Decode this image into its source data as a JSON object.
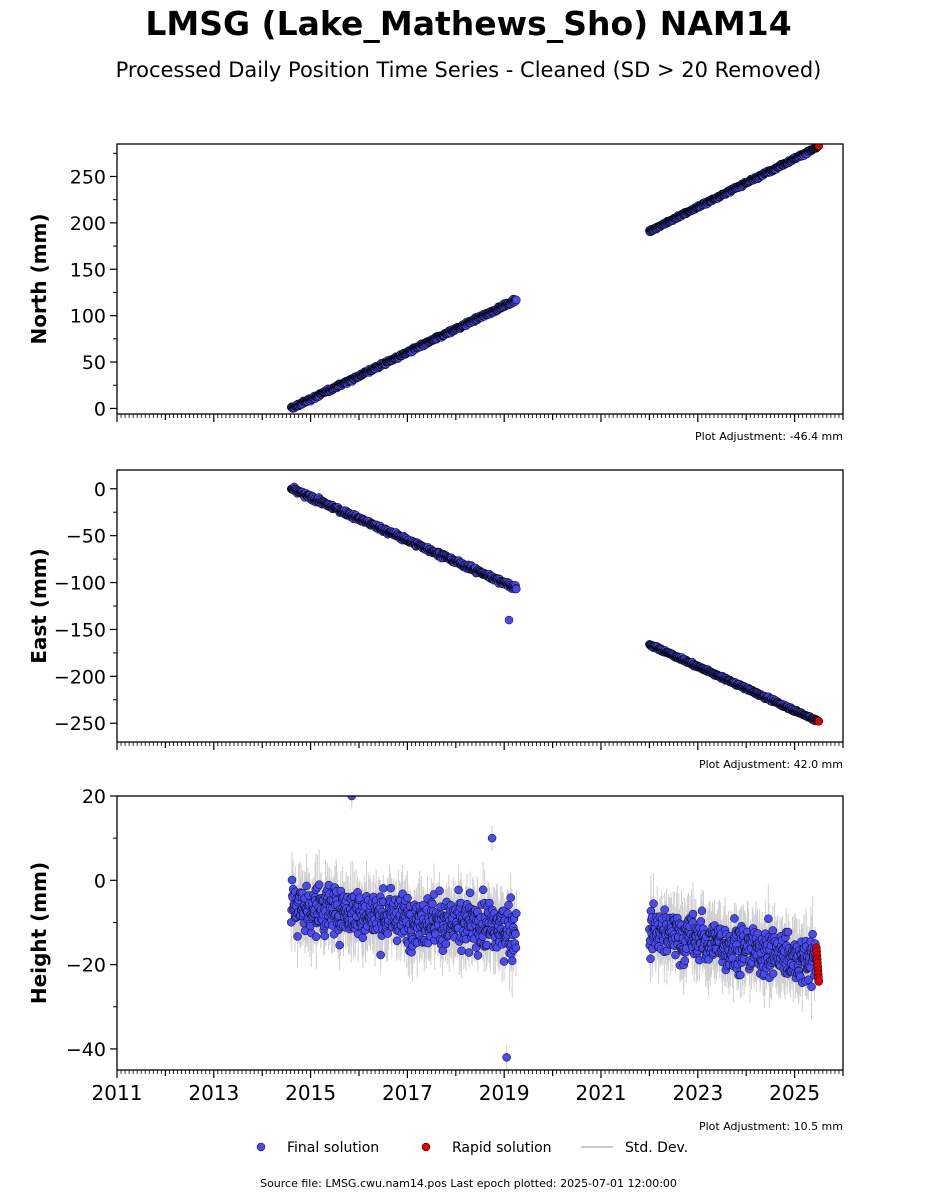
{
  "title": "LMSG (Lake_Mathews_Sho) NAM14",
  "subtitle": "Processed Daily Position Time Series - Cleaned (SD > 20 Removed)",
  "footer": "Source file: LMSG.cwu.nam14.pos  Last epoch plotted: 2025-07-01 12:00:00",
  "colors": {
    "final": "#4a4af0",
    "rapid": "#e00000",
    "stddev": "#bbbbbb",
    "edge": "#000000"
  },
  "legend": {
    "final": "Final solution",
    "rapid": "Rapid solution",
    "stddev": "Std. Dev."
  },
  "x_axis": {
    "range": [
      2011,
      2026
    ],
    "ticks": [
      "2011",
      "2013",
      "2015",
      "2017",
      "2019",
      "2021",
      "2023",
      "2025"
    ]
  },
  "chart_data": [
    {
      "type": "scatter",
      "ylabel": "North (mm)",
      "ylim": [
        -6,
        285
      ],
      "yticks": [
        0,
        50,
        100,
        150,
        200,
        250
      ],
      "adjustment": "Plot Adjustment: -46.4 mm",
      "segments": [
        {
          "x": [
            2014.6,
            2019.25
          ],
          "y": [
            0,
            117
          ],
          "noise": 1.5,
          "err": 2.5
        },
        {
          "x": [
            2022.0,
            2025.45
          ],
          "y": [
            191,
            281
          ],
          "noise": 1.2,
          "err": 1.5
        }
      ],
      "rapid": {
        "x": [
          2025.45,
          2025.5
        ],
        "y": [
          281,
          283
        ]
      },
      "extra_points": []
    },
    {
      "type": "scatter",
      "ylabel": "East (mm)",
      "ylim": [
        -270,
        20
      ],
      "yticks": [
        0,
        -50,
        -100,
        -150,
        -200,
        -250
      ],
      "adjustment": "Plot Adjustment: 42.0 mm",
      "segments": [
        {
          "x": [
            2014.6,
            2019.25
          ],
          "y": [
            0,
            -106
          ],
          "noise": 2.0,
          "err": 3.0
        },
        {
          "x": [
            2022.0,
            2025.45
          ],
          "y": [
            -166,
            -247
          ],
          "noise": 1.2,
          "err": 1.5
        }
      ],
      "rapid": {
        "x": [
          2025.45,
          2025.5
        ],
        "y": [
          -246,
          -248
        ]
      },
      "extra_points": [
        {
          "x": 2019.1,
          "y": -140
        }
      ]
    },
    {
      "type": "scatter",
      "ylabel": "Height (mm)",
      "ylim": [
        -45,
        20
      ],
      "yticks": [
        20,
        0,
        -20,
        -40
      ],
      "adjustment": "Plot Adjustment: 10.5 mm",
      "segments": [
        {
          "x": [
            2014.6,
            2019.25
          ],
          "y": [
            -6,
            -12
          ],
          "noise": 5.0,
          "err": 6.0
        },
        {
          "x": [
            2022.0,
            2025.45
          ],
          "y": [
            -12,
            -19
          ],
          "noise": 5.0,
          "err": 6.0
        }
      ],
      "rapid": {
        "x": [
          2025.45,
          2025.5
        ],
        "y": [
          -16,
          -24
        ]
      },
      "extra_points": [
        {
          "x": 2015.85,
          "y": 20
        },
        {
          "x": 2019.05,
          "y": -42
        },
        {
          "x": 2018.75,
          "y": 10
        }
      ]
    }
  ]
}
